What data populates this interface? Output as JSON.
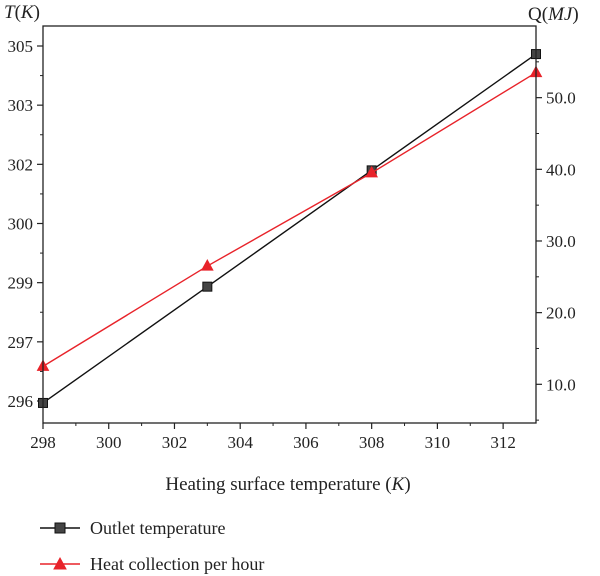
{
  "chart_data": {
    "type": "line",
    "x": [
      298,
      303,
      308,
      313
    ],
    "xlabel_prefix": "Heating surface temperature (",
    "xlabel_unit": "K",
    "xlabel_suffix": ")",
    "xlim": [
      298,
      313
    ],
    "xticks": [
      298,
      300,
      302,
      304,
      306,
      308,
      310,
      312
    ],
    "left_axis": {
      "label_symbol": "T",
      "label_unit": "K",
      "ylim": [
        295.6,
        305.5
      ],
      "tick_labels": [
        "296",
        "297",
        "299",
        "300",
        "302",
        "303",
        "305"
      ]
    },
    "right_axis": {
      "label_symbol": "Q",
      "label_unit": "MJ",
      "ylim": [
        4.6,
        60.0
      ],
      "ticks": [
        10.0,
        20.0,
        30.0,
        40.0,
        50.0
      ],
      "tick_labels": [
        "10.0",
        "20.0",
        "30.0",
        "40.0",
        "50.0"
      ]
    },
    "series": [
      {
        "name": "Outlet temperature",
        "axis": "left",
        "values": [
          296.1,
          299.0,
          301.9,
          304.8
        ],
        "color": "#111111",
        "marker": "square"
      },
      {
        "name": "Heat collection per hour",
        "axis": "right",
        "values": [
          12.5,
          26.5,
          39.5,
          53.5
        ],
        "color": "#e8232a",
        "marker": "triangle"
      }
    ],
    "grid": false,
    "legend_position": "bottom-left"
  }
}
